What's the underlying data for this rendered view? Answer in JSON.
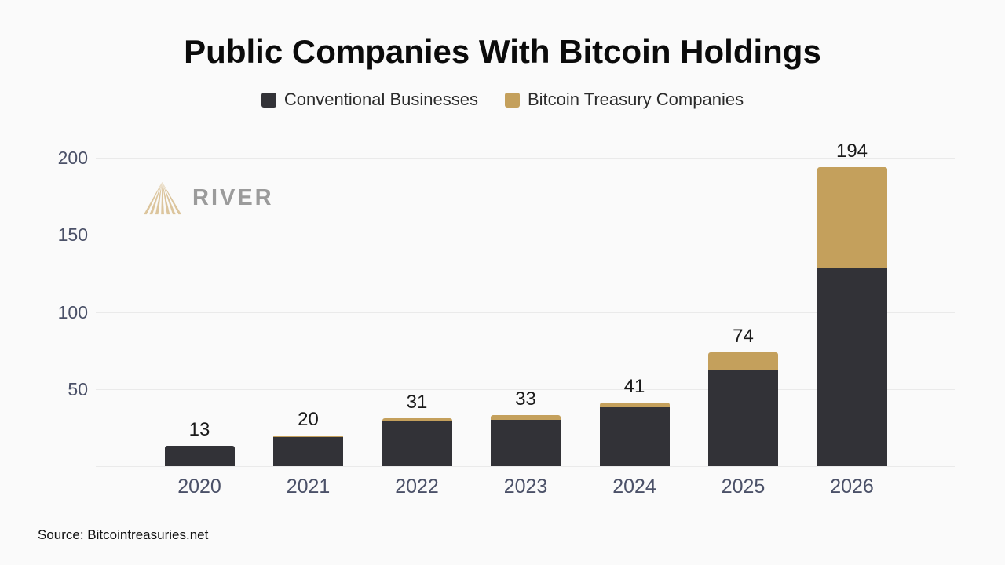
{
  "title": "Public Companies With Bitcoin Holdings",
  "legend": [
    {
      "label": "Conventional Businesses",
      "color": "#323237"
    },
    {
      "label": "Bitcoin Treasury Companies",
      "color": "#c4a05c"
    }
  ],
  "watermark": {
    "text": "RIVER"
  },
  "source": "Source: Bitcointreasuries.net",
  "colors": {
    "background": "#fafafa",
    "gridline": "#eaeaea",
    "axis_label": "#4b5168",
    "value_label": "#1a1a1a",
    "conventional_bar": "#323237",
    "treasury_bar": "#c4a05c",
    "logo_mark": "#dcc59d",
    "logo_text": "#9b9b9b"
  },
  "chart_data": {
    "type": "bar",
    "stacked": true,
    "title": "Public Companies With Bitcoin Holdings",
    "categories": [
      "2020",
      "2021",
      "2022",
      "2023",
      "2024",
      "2025",
      "2026"
    ],
    "series": [
      {
        "name": "Conventional Businesses",
        "color": "#323237",
        "values": [
          13,
          19,
          29,
          30,
          38,
          62,
          129
        ]
      },
      {
        "name": "Bitcoin Treasury Companies",
        "color": "#c4a05c",
        "values": [
          0,
          1,
          2,
          3,
          3,
          12,
          65
        ]
      }
    ],
    "totals": [
      13,
      20,
      31,
      33,
      41,
      74,
      194
    ],
    "ylim": [
      0,
      200
    ],
    "yticks": [
      50,
      100,
      150,
      200
    ],
    "grid": "horizontal",
    "legend_position": "top",
    "source": "Bitcointreasuries.net"
  }
}
